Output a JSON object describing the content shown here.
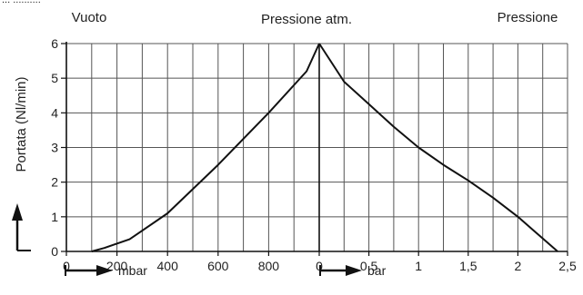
{
  "chart_data": {
    "type": "line",
    "header_cut": "... ..........",
    "headers": {
      "left": "Vuoto",
      "center": "Pressione atm.",
      "right": "Pressione"
    },
    "ylabel": "Portata (Nl/min)",
    "ylim": [
      0,
      6
    ],
    "yticks": [
      "0",
      "1",
      "2",
      "3",
      "4",
      "5",
      "6"
    ],
    "grid": true,
    "x_left": {
      "unit_label": "mbar",
      "range": [
        0,
        1000
      ],
      "ticks": [
        "0",
        "200",
        "400",
        "600",
        "800"
      ]
    },
    "x_right": {
      "unit_label": "bar",
      "range": [
        0,
        2.5
      ],
      "ticks": [
        "0",
        "0,5",
        "1",
        "1,5",
        "2",
        "2,5"
      ]
    },
    "series_vacuum": {
      "x": [
        100,
        150,
        250,
        400,
        600,
        800,
        950,
        1000
      ],
      "y": [
        0,
        0.1,
        0.35,
        1.1,
        2.5,
        4.0,
        5.2,
        6.0
      ]
    },
    "series_pressure": {
      "x": [
        0,
        0.25,
        0.5,
        0.75,
        1.0,
        1.25,
        1.5,
        1.75,
        2.0,
        2.2,
        2.4
      ],
      "y": [
        6.0,
        4.9,
        4.25,
        3.6,
        3.0,
        2.5,
        2.05,
        1.55,
        1.0,
        0.5,
        0.0
      ]
    }
  }
}
